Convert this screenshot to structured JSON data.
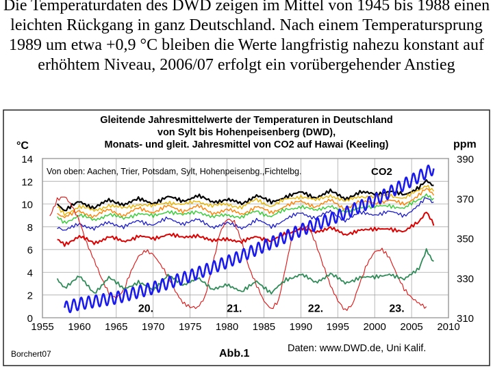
{
  "caption": "Die Temperaturdaten des DWD zeigen im Mittel von 1945 bis 1988 einen leichten Rückgang in ganz Deutschland. Nach einem Temperatursprung 1989 um etwa +0,9 °C bleiben die Werte langfristig nahezu konstant auf erhöhtem Niveau, 2006/07 erfolgt ein vorübergehender Anstieg",
  "chart_data": {
    "type": "line",
    "title_lines": [
      "Gleitende Jahresmittelwerte der Temperaturen in Deutschland",
      "von Sylt bis Hohenpeisenberg (DWD),",
      "Monats-  und gleit. Jahresmittel von CO2 auf Hawai (Keeling)"
    ],
    "ylabel_left": "°C",
    "ylabel_right": "ppm",
    "x_ticks": [
      1955,
      1960,
      1965,
      1970,
      1975,
      1980,
      1985,
      1990,
      1995,
      2000,
      2005,
      2010
    ],
    "y_left_ticks": [
      0,
      2,
      4,
      6,
      8,
      10,
      12,
      14
    ],
    "y_right_ticks": [
      310,
      330,
      350,
      370,
      390
    ],
    "xlim": [
      1955,
      2010
    ],
    "ylim_left": [
      0,
      14
    ],
    "ylim_right": [
      310,
      390
    ],
    "legend_text": "Von oben: Aachen, Trier, Potsdam, Sylt, Hohenpeisenbg.,Fichtelbg.",
    "co2_label": "CO2",
    "solar_cycle_labels": [
      {
        "label": "20.",
        "x": 1969
      },
      {
        "label": "21.",
        "x": 1981
      },
      {
        "label": "22.",
        "x": 1992
      },
      {
        "label": "23.",
        "x": 2003
      }
    ],
    "source_left": "Borchert07",
    "figure_label": "Abb.1",
    "source_right": "Daten: www.DWD.de, Uni Kalif.",
    "series": [
      {
        "name": "Aachen",
        "color": "#000000",
        "axis": "left",
        "width": 2.2,
        "x": [
          1957,
          1958,
          1960,
          1962,
          1964,
          1966,
          1968,
          1970,
          1972,
          1974,
          1976,
          1978,
          1980,
          1982,
          1984,
          1986,
          1988,
          1990,
          1992,
          1994,
          1996,
          1998,
          2000,
          2002,
          2004,
          2006,
          2007,
          2008
        ],
        "y": [
          10.1,
          9.4,
          10.2,
          9.7,
          10.3,
          10.0,
          10.4,
          10.1,
          10.6,
          10.3,
          10.7,
          10.2,
          10.4,
          10.0,
          10.8,
          10.1,
          10.7,
          11.0,
          10.6,
          11.1,
          10.5,
          11.0,
          10.9,
          11.1,
          10.8,
          11.5,
          12.0,
          11.5
        ]
      },
      {
        "name": "Trier",
        "color": "#e8b500",
        "axis": "left",
        "width": 1.4,
        "x": [
          1957,
          1958,
          1960,
          1962,
          1964,
          1966,
          1968,
          1970,
          1972,
          1974,
          1976,
          1978,
          1980,
          1982,
          1984,
          1986,
          1988,
          1990,
          1992,
          1994,
          1996,
          1998,
          2000,
          2002,
          2004,
          2006,
          2007,
          2008
        ],
        "y": [
          9.7,
          9.1,
          9.8,
          9.4,
          9.9,
          9.6,
          10.0,
          9.8,
          10.2,
          9.9,
          10.3,
          9.8,
          10.0,
          9.7,
          10.4,
          9.8,
          10.4,
          10.7,
          10.3,
          10.8,
          10.2,
          10.7,
          10.6,
          10.8,
          10.5,
          11.2,
          11.7,
          11.2
        ]
      },
      {
        "name": "Potsdam",
        "color": "#ff7f00",
        "axis": "left",
        "width": 1.4,
        "x": [
          1957,
          1958,
          1960,
          1962,
          1964,
          1966,
          1968,
          1970,
          1972,
          1974,
          1976,
          1978,
          1980,
          1982,
          1984,
          1986,
          1988,
          1990,
          1992,
          1994,
          1996,
          1998,
          2000,
          2002,
          2004,
          2006,
          2007,
          2008
        ],
        "y": [
          9.2,
          8.8,
          9.4,
          8.9,
          9.5,
          9.0,
          9.6,
          9.3,
          9.8,
          9.4,
          9.8,
          9.2,
          9.5,
          9.1,
          9.8,
          9.2,
          9.9,
          10.2,
          9.8,
          10.3,
          9.6,
          10.2,
          10.1,
          10.3,
          10.0,
          10.8,
          11.3,
          10.8
        ]
      },
      {
        "name": "Sylt",
        "color": "#33cc33",
        "axis": "left",
        "width": 1.4,
        "x": [
          1957,
          1958,
          1960,
          1962,
          1964,
          1966,
          1968,
          1970,
          1972,
          1974,
          1976,
          1978,
          1980,
          1982,
          1984,
          1986,
          1988,
          1990,
          1992,
          1994,
          1996,
          1998,
          2000,
          2002,
          2004,
          2006,
          2007,
          2008
        ],
        "y": [
          8.8,
          8.4,
          9.0,
          8.6,
          9.1,
          8.7,
          9.2,
          8.9,
          9.4,
          9.0,
          9.4,
          8.8,
          9.1,
          8.8,
          9.4,
          8.9,
          9.5,
          9.8,
          9.4,
          9.9,
          9.2,
          9.8,
          9.7,
          9.9,
          9.6,
          10.4,
          10.9,
          10.4
        ]
      },
      {
        "name": "Hohenpeisenberg",
        "color": "#1a1acc",
        "axis": "left",
        "width": 1.3,
        "x": [
          1957,
          1958,
          1960,
          1962,
          1964,
          1966,
          1968,
          1970,
          1972,
          1974,
          1976,
          1978,
          1980,
          1982,
          1984,
          1986,
          1988,
          1990,
          1992,
          1994,
          1996,
          1998,
          2000,
          2002,
          2004,
          2006,
          2007,
          2008
        ],
        "y": [
          8.0,
          7.6,
          8.3,
          7.8,
          8.4,
          8.0,
          8.5,
          8.2,
          8.7,
          8.3,
          8.6,
          8.0,
          8.3,
          7.9,
          8.6,
          8.0,
          8.7,
          9.2,
          8.8,
          9.3,
          8.6,
          9.2,
          9.1,
          9.3,
          9.0,
          9.9,
          10.5,
          10.1
        ]
      },
      {
        "name": "Fichtelberg",
        "color": "#dd0000",
        "axis": "left",
        "width": 2.0,
        "x": [
          1957,
          1958,
          1960,
          1962,
          1964,
          1966,
          1968,
          1970,
          1972,
          1974,
          1976,
          1978,
          1980,
          1982,
          1984,
          1986,
          1988,
          1990,
          1992,
          1994,
          1996,
          1998,
          2000,
          2002,
          2004,
          2006,
          2007,
          2008
        ],
        "y": [
          6.9,
          6.5,
          7.1,
          6.6,
          7.1,
          6.7,
          7.2,
          6.9,
          7.4,
          7.0,
          7.3,
          6.7,
          7.0,
          6.6,
          7.2,
          6.7,
          7.4,
          7.9,
          7.5,
          8.0,
          7.2,
          7.8,
          7.7,
          7.9,
          7.5,
          8.5,
          9.4,
          8.2
        ]
      },
      {
        "name": "Sonnenflecken",
        "color": "#e01010",
        "axis": "left",
        "width": 1.1,
        "x": [
          1956,
          1957,
          1958,
          1959,
          1960,
          1961,
          1962,
          1963,
          1964,
          1965,
          1966,
          1967,
          1968,
          1969,
          1970,
          1971,
          1972,
          1973,
          1974,
          1975,
          1976,
          1977,
          1978,
          1979,
          1980,
          1981,
          1982,
          1983,
          1984,
          1985,
          1986,
          1987,
          1988,
          1989,
          1990,
          1991,
          1992,
          1993,
          1994,
          1995,
          1996,
          1997,
          1998,
          1999,
          2000,
          2001,
          2002,
          2003,
          2004,
          2005,
          2006,
          2007
        ],
        "y": [
          9.0,
          10.4,
          10.6,
          9.8,
          8.6,
          6.6,
          5.0,
          3.4,
          2.2,
          1.8,
          2.4,
          4.0,
          5.4,
          6.0,
          5.6,
          4.6,
          3.6,
          2.4,
          1.4,
          0.9,
          0.8,
          1.8,
          4.6,
          7.4,
          8.6,
          8.4,
          6.8,
          4.4,
          2.8,
          1.4,
          0.8,
          1.6,
          4.6,
          7.6,
          7.8,
          8.2,
          6.6,
          4.6,
          2.8,
          1.6,
          0.7,
          1.1,
          3.0,
          4.8,
          5.9,
          6.0,
          5.2,
          3.8,
          2.6,
          1.8,
          1.2,
          0.8
        ]
      },
      {
        "name": "Sommerhalbjahr",
        "color": "#2e8b57",
        "axis": "left",
        "width": 1.8,
        "x": [
          1957,
          1958,
          1960,
          1962,
          1964,
          1966,
          1968,
          1970,
          1972,
          1974,
          1976,
          1978,
          1980,
          1982,
          1984,
          1986,
          1988,
          1990,
          1992,
          1994,
          1996,
          1998,
          2000,
          2002,
          2004,
          2006,
          2007,
          2008
        ],
        "y": [
          3.4,
          2.7,
          3.6,
          2.2,
          3.5,
          2.6,
          3.1,
          2.4,
          3.8,
          2.8,
          3.6,
          2.4,
          3.0,
          2.2,
          3.3,
          2.1,
          3.4,
          3.8,
          3.1,
          3.9,
          3.0,
          3.6,
          3.5,
          3.9,
          3.3,
          4.4,
          6.0,
          4.8
        ]
      },
      {
        "name": "CO2",
        "color": "#1a1aee",
        "axis": "right",
        "width": 2.6,
        "amplitude": 3,
        "x": [
          1958,
          1960,
          1965,
          1970,
          1975,
          1980,
          1985,
          1990,
          1995,
          2000,
          2005,
          2008
        ],
        "y": [
          315,
          317,
          320,
          325,
          331,
          338,
          346,
          354,
          361,
          369,
          379,
          385
        ]
      }
    ]
  }
}
